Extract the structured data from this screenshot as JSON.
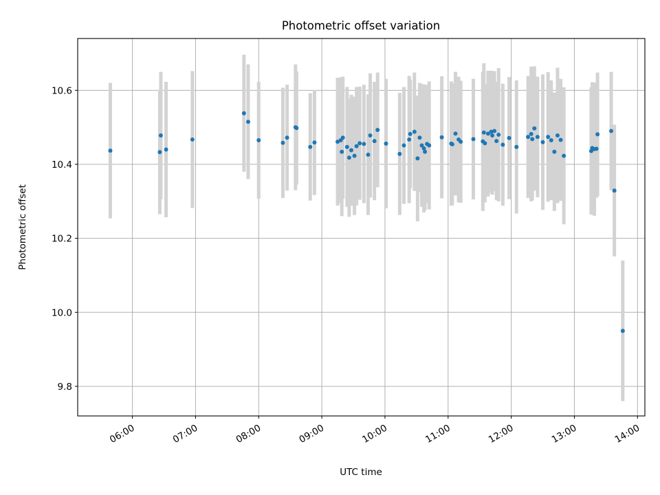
{
  "chart_data": {
    "type": "scatter",
    "title": "Photometric offset variation",
    "xlabel": "UTC time",
    "ylabel": "Photometric offset",
    "x_axis": {
      "kind": "time",
      "xlim": [
        "05:08",
        "14:07"
      ],
      "ticks": [
        "06:00",
        "07:00",
        "08:00",
        "09:00",
        "10:00",
        "11:00",
        "12:00",
        "13:00",
        "14:00"
      ]
    },
    "y_axis": {
      "ylim": [
        9.72,
        10.74
      ],
      "ticks": [
        "9.8",
        "10.0",
        "10.2",
        "10.4",
        "10.6"
      ]
    },
    "grid": true,
    "legend": "none",
    "colors": {
      "point": "#1f77b4",
      "errorbar": "#d3d3d3",
      "grid": "#b0b0b0"
    },
    "series": [
      {
        "x": [
          "05:39",
          "06:26",
          "06:27",
          "06:32",
          "06:57",
          "07:46",
          "07:50",
          "08:00",
          "08:23",
          "08:27",
          "08:35",
          "08:36",
          "08:49",
          "08:53",
          "09:15",
          "09:18",
          "09:19",
          "09:20",
          "09:24",
          "09:26",
          "09:28",
          "09:31",
          "09:33",
          "09:36",
          "09:40",
          "09:44",
          "09:46",
          "09:50",
          "09:53",
          "10:01",
          "10:14",
          "10:18",
          "10:23",
          "10:24",
          "10:28",
          "10:31",
          "10:33",
          "10:35",
          "10:37",
          "10:38",
          "10:40",
          "10:42",
          "10:54",
          "11:03",
          "11:04",
          "11:07",
          "11:10",
          "11:12",
          "11:24",
          "11:33",
          "11:34",
          "11:35",
          "11:38",
          "11:41",
          "11:42",
          "11:44",
          "11:46",
          "11:48",
          "11:52",
          "11:58",
          "12:05",
          "12:16",
          "12:19",
          "12:20",
          "12:22",
          "12:25",
          "12:30",
          "12:35",
          "12:38",
          "12:41",
          "12:44",
          "12:47",
          "12:50",
          "13:16",
          "13:17",
          "13:19",
          "13:21",
          "13:22",
          "13:35",
          "13:38",
          "13:46"
        ],
        "y": [
          10.437,
          10.433,
          10.478,
          10.44,
          10.467,
          10.538,
          10.515,
          10.465,
          10.458,
          10.472,
          10.5,
          10.498,
          10.447,
          10.459,
          10.461,
          10.465,
          10.434,
          10.472,
          10.447,
          10.418,
          10.438,
          10.423,
          10.449,
          10.457,
          10.455,
          10.426,
          10.478,
          10.463,
          10.493,
          10.456,
          10.428,
          10.451,
          10.467,
          10.482,
          10.488,
          10.416,
          10.472,
          10.451,
          10.443,
          10.434,
          10.455,
          10.451,
          10.473,
          10.456,
          10.454,
          10.483,
          10.467,
          10.461,
          10.468,
          10.462,
          10.486,
          10.457,
          10.483,
          10.488,
          10.478,
          10.49,
          10.463,
          10.48,
          10.453,
          10.471,
          10.447,
          10.474,
          10.482,
          10.468,
          10.497,
          10.474,
          10.46,
          10.474,
          10.465,
          10.434,
          10.478,
          10.466,
          10.423,
          10.436,
          10.444,
          10.441,
          10.442,
          10.481,
          10.49,
          10.329,
          9.95
        ],
        "yerr": [
          0.183,
          0.168,
          0.172,
          0.183,
          0.185,
          0.158,
          0.155,
          0.158,
          0.149,
          0.143,
          0.17,
          0.153,
          0.145,
          0.142,
          0.173,
          0.17,
          0.174,
          0.165,
          0.162,
          0.16,
          0.15,
          0.16,
          0.16,
          0.153,
          0.16,
          0.163,
          0.168,
          0.16,
          0.155,
          0.175,
          0.165,
          0.158,
          0.172,
          0.147,
          0.16,
          0.17,
          0.148,
          0.166,
          0.173,
          0.158,
          0.16,
          0.173,
          0.165,
          0.168,
          0.165,
          0.167,
          0.17,
          0.165,
          0.163,
          0.188,
          0.187,
          0.16,
          0.17,
          0.165,
          0.16,
          0.162,
          0.16,
          0.18,
          0.165,
          0.165,
          0.18,
          0.165,
          0.182,
          0.165,
          0.168,
          0.163,
          0.183,
          0.175,
          0.162,
          0.16,
          0.183,
          0.165,
          0.185,
          0.172,
          0.178,
          0.18,
          0.132,
          0.167,
          0.16,
          0.178,
          0.19
        ]
      }
    ]
  }
}
